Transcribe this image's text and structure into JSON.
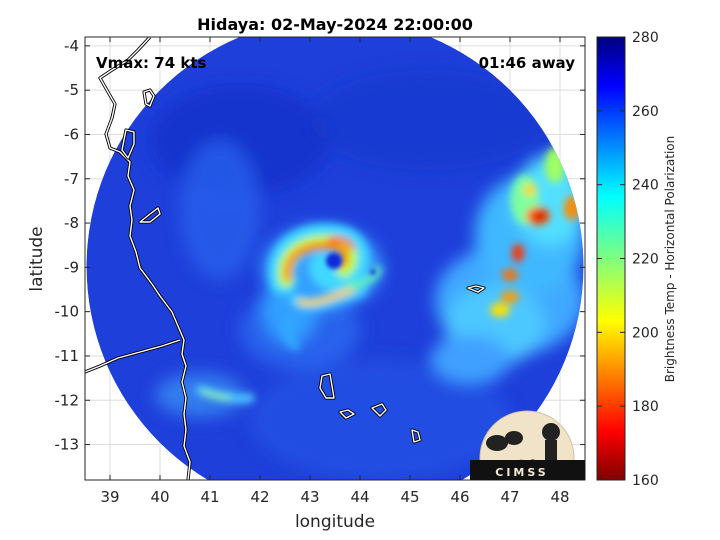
{
  "chart_data": {
    "type": "heatmap",
    "title": "Hidaya: 02-May-2024 22:00:00",
    "xlabel": "longitude",
    "ylabel": "latitude",
    "xlim": [
      38.5,
      48.5
    ],
    "ylim": [
      -13.8,
      -3.8
    ],
    "x_ticks": [
      39,
      40,
      41,
      42,
      43,
      44,
      45,
      46,
      47,
      48
    ],
    "y_ticks": [
      -4,
      -5,
      -6,
      -7,
      -8,
      -9,
      -10,
      -11,
      -12,
      -13
    ],
    "grid": true,
    "annotations": {
      "vmax": "Vmax: 74 kts",
      "time_offset": "01:46 away"
    },
    "colorbar": {
      "label": "Brightness Temp - Horizontal Polarization",
      "range": [
        160,
        280
      ],
      "ticks": [
        160,
        180,
        200,
        220,
        240,
        260,
        280
      ],
      "colormap": "jet"
    },
    "swath": {
      "center": [
        43.5,
        -8.98
      ],
      "radius_deg": 4.97
    },
    "storm_center": [
      43.05,
      -9.05
    ],
    "logo_text": "CIMSS"
  },
  "colors": {
    "background_tb": "#1f3fdb",
    "jet": [
      "#00007f",
      "#0000ff",
      "#007fff",
      "#00ffff",
      "#7fff7f",
      "#ffff00",
      "#ff7f00",
      "#ff0000",
      "#7f0000"
    ],
    "coast": "#ffffff",
    "grid": "#dedede"
  }
}
